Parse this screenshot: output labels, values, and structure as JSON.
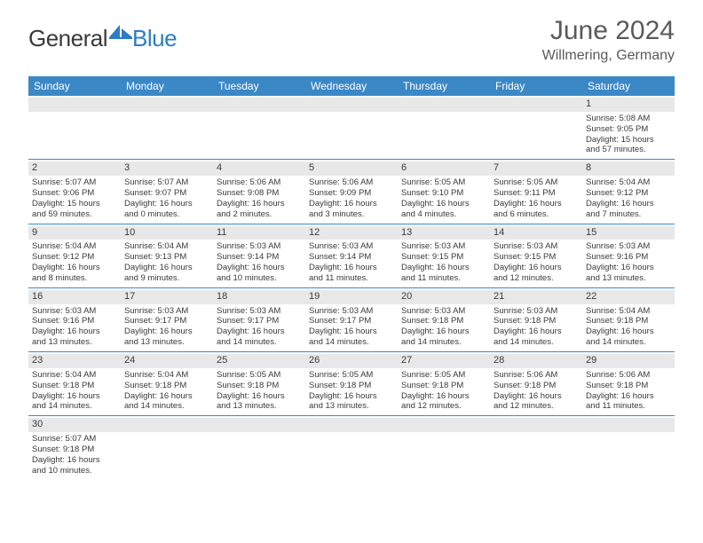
{
  "logo": {
    "part1": "General",
    "part2": "Blue"
  },
  "title": "June 2024",
  "subtitle": "Willmering, Germany",
  "day_headers": [
    "Sunday",
    "Monday",
    "Tuesday",
    "Wednesday",
    "Thursday",
    "Friday",
    "Saturday"
  ],
  "colors": {
    "header_bg": "#3b88c7",
    "header_text": "#ffffff",
    "daynum_bg": "#e8e8e8",
    "border": "#3b88c7",
    "empty_bg": "#f0f0f0"
  },
  "weeks": [
    [
      null,
      null,
      null,
      null,
      null,
      null,
      {
        "n": "1",
        "sr": "Sunrise: 5:08 AM",
        "ss": "Sunset: 9:05 PM",
        "d1": "Daylight: 15 hours",
        "d2": "and 57 minutes."
      }
    ],
    [
      {
        "n": "2",
        "sr": "Sunrise: 5:07 AM",
        "ss": "Sunset: 9:06 PM",
        "d1": "Daylight: 15 hours",
        "d2": "and 59 minutes."
      },
      {
        "n": "3",
        "sr": "Sunrise: 5:07 AM",
        "ss": "Sunset: 9:07 PM",
        "d1": "Daylight: 16 hours",
        "d2": "and 0 minutes."
      },
      {
        "n": "4",
        "sr": "Sunrise: 5:06 AM",
        "ss": "Sunset: 9:08 PM",
        "d1": "Daylight: 16 hours",
        "d2": "and 2 minutes."
      },
      {
        "n": "5",
        "sr": "Sunrise: 5:06 AM",
        "ss": "Sunset: 9:09 PM",
        "d1": "Daylight: 16 hours",
        "d2": "and 3 minutes."
      },
      {
        "n": "6",
        "sr": "Sunrise: 5:05 AM",
        "ss": "Sunset: 9:10 PM",
        "d1": "Daylight: 16 hours",
        "d2": "and 4 minutes."
      },
      {
        "n": "7",
        "sr": "Sunrise: 5:05 AM",
        "ss": "Sunset: 9:11 PM",
        "d1": "Daylight: 16 hours",
        "d2": "and 6 minutes."
      },
      {
        "n": "8",
        "sr": "Sunrise: 5:04 AM",
        "ss": "Sunset: 9:12 PM",
        "d1": "Daylight: 16 hours",
        "d2": "and 7 minutes."
      }
    ],
    [
      {
        "n": "9",
        "sr": "Sunrise: 5:04 AM",
        "ss": "Sunset: 9:12 PM",
        "d1": "Daylight: 16 hours",
        "d2": "and 8 minutes."
      },
      {
        "n": "10",
        "sr": "Sunrise: 5:04 AM",
        "ss": "Sunset: 9:13 PM",
        "d1": "Daylight: 16 hours",
        "d2": "and 9 minutes."
      },
      {
        "n": "11",
        "sr": "Sunrise: 5:03 AM",
        "ss": "Sunset: 9:14 PM",
        "d1": "Daylight: 16 hours",
        "d2": "and 10 minutes."
      },
      {
        "n": "12",
        "sr": "Sunrise: 5:03 AM",
        "ss": "Sunset: 9:14 PM",
        "d1": "Daylight: 16 hours",
        "d2": "and 11 minutes."
      },
      {
        "n": "13",
        "sr": "Sunrise: 5:03 AM",
        "ss": "Sunset: 9:15 PM",
        "d1": "Daylight: 16 hours",
        "d2": "and 11 minutes."
      },
      {
        "n": "14",
        "sr": "Sunrise: 5:03 AM",
        "ss": "Sunset: 9:15 PM",
        "d1": "Daylight: 16 hours",
        "d2": "and 12 minutes."
      },
      {
        "n": "15",
        "sr": "Sunrise: 5:03 AM",
        "ss": "Sunset: 9:16 PM",
        "d1": "Daylight: 16 hours",
        "d2": "and 13 minutes."
      }
    ],
    [
      {
        "n": "16",
        "sr": "Sunrise: 5:03 AM",
        "ss": "Sunset: 9:16 PM",
        "d1": "Daylight: 16 hours",
        "d2": "and 13 minutes."
      },
      {
        "n": "17",
        "sr": "Sunrise: 5:03 AM",
        "ss": "Sunset: 9:17 PM",
        "d1": "Daylight: 16 hours",
        "d2": "and 13 minutes."
      },
      {
        "n": "18",
        "sr": "Sunrise: 5:03 AM",
        "ss": "Sunset: 9:17 PM",
        "d1": "Daylight: 16 hours",
        "d2": "and 14 minutes."
      },
      {
        "n": "19",
        "sr": "Sunrise: 5:03 AM",
        "ss": "Sunset: 9:17 PM",
        "d1": "Daylight: 16 hours",
        "d2": "and 14 minutes."
      },
      {
        "n": "20",
        "sr": "Sunrise: 5:03 AM",
        "ss": "Sunset: 9:18 PM",
        "d1": "Daylight: 16 hours",
        "d2": "and 14 minutes."
      },
      {
        "n": "21",
        "sr": "Sunrise: 5:03 AM",
        "ss": "Sunset: 9:18 PM",
        "d1": "Daylight: 16 hours",
        "d2": "and 14 minutes."
      },
      {
        "n": "22",
        "sr": "Sunrise: 5:04 AM",
        "ss": "Sunset: 9:18 PM",
        "d1": "Daylight: 16 hours",
        "d2": "and 14 minutes."
      }
    ],
    [
      {
        "n": "23",
        "sr": "Sunrise: 5:04 AM",
        "ss": "Sunset: 9:18 PM",
        "d1": "Daylight: 16 hours",
        "d2": "and 14 minutes."
      },
      {
        "n": "24",
        "sr": "Sunrise: 5:04 AM",
        "ss": "Sunset: 9:18 PM",
        "d1": "Daylight: 16 hours",
        "d2": "and 14 minutes."
      },
      {
        "n": "25",
        "sr": "Sunrise: 5:05 AM",
        "ss": "Sunset: 9:18 PM",
        "d1": "Daylight: 16 hours",
        "d2": "and 13 minutes."
      },
      {
        "n": "26",
        "sr": "Sunrise: 5:05 AM",
        "ss": "Sunset: 9:18 PM",
        "d1": "Daylight: 16 hours",
        "d2": "and 13 minutes."
      },
      {
        "n": "27",
        "sr": "Sunrise: 5:05 AM",
        "ss": "Sunset: 9:18 PM",
        "d1": "Daylight: 16 hours",
        "d2": "and 12 minutes."
      },
      {
        "n": "28",
        "sr": "Sunrise: 5:06 AM",
        "ss": "Sunset: 9:18 PM",
        "d1": "Daylight: 16 hours",
        "d2": "and 12 minutes."
      },
      {
        "n": "29",
        "sr": "Sunrise: 5:06 AM",
        "ss": "Sunset: 9:18 PM",
        "d1": "Daylight: 16 hours",
        "d2": "and 11 minutes."
      }
    ],
    [
      {
        "n": "30",
        "sr": "Sunrise: 5:07 AM",
        "ss": "Sunset: 9:18 PM",
        "d1": "Daylight: 16 hours",
        "d2": "and 10 minutes."
      },
      null,
      null,
      null,
      null,
      null,
      null
    ]
  ]
}
